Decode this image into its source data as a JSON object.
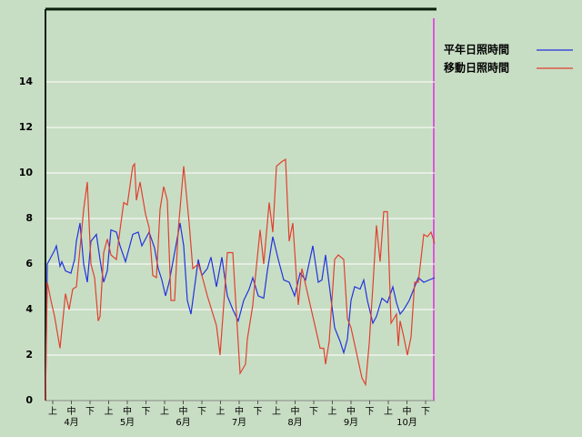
{
  "chart_data": {
    "type": "line",
    "ylim": [
      0,
      17.2
    ],
    "yticks": [
      0,
      2,
      4,
      6,
      8,
      10,
      12,
      14
    ],
    "grid": true,
    "xlim": [
      0,
      214
    ],
    "dekad_labels": [
      "上",
      "中",
      "下",
      "上",
      "中",
      "下",
      "上",
      "中",
      "下",
      "上",
      "中",
      "下",
      "上",
      "中",
      "下",
      "上",
      "中",
      "下",
      "上",
      "中",
      "下"
    ],
    "month_labels": [
      "4月",
      "5月",
      "6月",
      "7月",
      "8月",
      "9月",
      "10月"
    ],
    "series": [
      {
        "name": "平年日照時間",
        "color": "#2233dd",
        "x": [
          0,
          1,
          5,
          6,
          8,
          9,
          11,
          14,
          16,
          17,
          19,
          21,
          23,
          25,
          28,
          30,
          32,
          34,
          36,
          39,
          41,
          44,
          48,
          51,
          53,
          57,
          60,
          62,
          64,
          66,
          68,
          71,
          74,
          76,
          78,
          80,
          82,
          84,
          86,
          89,
          91,
          94,
          97,
          100,
          103,
          106,
          109,
          112,
          114,
          117,
          120,
          122,
          125,
          128,
          131,
          134,
          137,
          140,
          143,
          147,
          150,
          152,
          154,
          156,
          159,
          162,
          164,
          166,
          168,
          170,
          173,
          175,
          177,
          180,
          182,
          185,
          188,
          191,
          193,
          195,
          197,
          200,
          205,
          208,
          211,
          214
        ],
        "values": [
          0,
          6,
          6.6,
          6.8,
          5.9,
          6.1,
          5.7,
          5.6,
          6.2,
          7.0,
          7.8,
          6,
          5.2,
          7,
          7.3,
          6.2,
          5.2,
          5.7,
          7.5,
          7.4,
          6.8,
          6.1,
          7.3,
          7.4,
          6.8,
          7.4,
          6.7,
          5.8,
          5.3,
          4.6,
          5.2,
          6.5,
          7.8,
          6.8,
          4.4,
          3.8,
          5,
          6.2,
          5.5,
          5.8,
          6.3,
          5,
          6.3,
          4.6,
          4,
          3.5,
          4.4,
          4.9,
          5.4,
          4.6,
          4.5,
          5.7,
          7.2,
          6.2,
          5.3,
          5.2,
          4.6,
          5.6,
          5.3,
          6.8,
          5.2,
          5.3,
          6.4,
          5.1,
          3.2,
          2.6,
          2.1,
          2.7,
          4.4,
          5,
          4.9,
          5.3,
          4.4,
          3.4,
          3.7,
          4.5,
          4.3,
          5,
          4.3,
          3.8,
          4,
          4.4,
          5.4,
          5.2,
          5.3,
          5.4
        ]
      },
      {
        "name": "移動日照時間",
        "color": "#e04030",
        "x": [
          0,
          1,
          3,
          5,
          8,
          11,
          13,
          15,
          17,
          21,
          23,
          25,
          27,
          29,
          30,
          32,
          34,
          36,
          39,
          40,
          43,
          45,
          48,
          49,
          50,
          52,
          55,
          57,
          59,
          61,
          63,
          65,
          67,
          69,
          71,
          73,
          76,
          79,
          81,
          84,
          86,
          89,
          94,
          96,
          98,
          100,
          103,
          105,
          107,
          110,
          111,
          114,
          115,
          118,
          120,
          123,
          125,
          127,
          130,
          132,
          134,
          136,
          139,
          141,
          143,
          147,
          151,
          153,
          154,
          156,
          159,
          161,
          164,
          166,
          168,
          171,
          174,
          176,
          178,
          180,
          182,
          184,
          186,
          188,
          190,
          193,
          194,
          195,
          197,
          199,
          201,
          203,
          205,
          208,
          210,
          212,
          214
        ],
        "values": [
          0,
          5.2,
          4.4,
          3.7,
          2.3,
          4.7,
          4,
          4.9,
          5,
          8.4,
          9.6,
          6,
          5.4,
          3.5,
          3.7,
          6.5,
          7.1,
          6.4,
          6.2,
          6.9,
          8.7,
          8.6,
          10.3,
          10.4,
          8.8,
          9.6,
          8.2,
          7.6,
          5.5,
          5.4,
          8.4,
          9.4,
          8.8,
          4.4,
          4.4,
          7.5,
          10.3,
          7.8,
          5.8,
          6,
          5.5,
          4.6,
          3.3,
          2,
          4.2,
          6.5,
          6.5,
          3.8,
          1.2,
          1.6,
          2.7,
          4.2,
          5.1,
          7.5,
          6,
          8.7,
          7.4,
          10.3,
          10.5,
          10.6,
          7,
          7.8,
          4.2,
          5.8,
          5.1,
          3.7,
          2.3,
          2.3,
          1.6,
          2.6,
          6.2,
          6.4,
          6.2,
          3.6,
          3.2,
          2.1,
          1,
          0.7,
          2.5,
          5,
          7.7,
          6.1,
          8.3,
          8.3,
          3.4,
          3.8,
          2.4,
          3.5,
          2.8,
          2,
          2.8,
          5.2,
          5.2,
          7.3,
          7.2,
          7.4,
          6.9
        ]
      }
    ]
  }
}
